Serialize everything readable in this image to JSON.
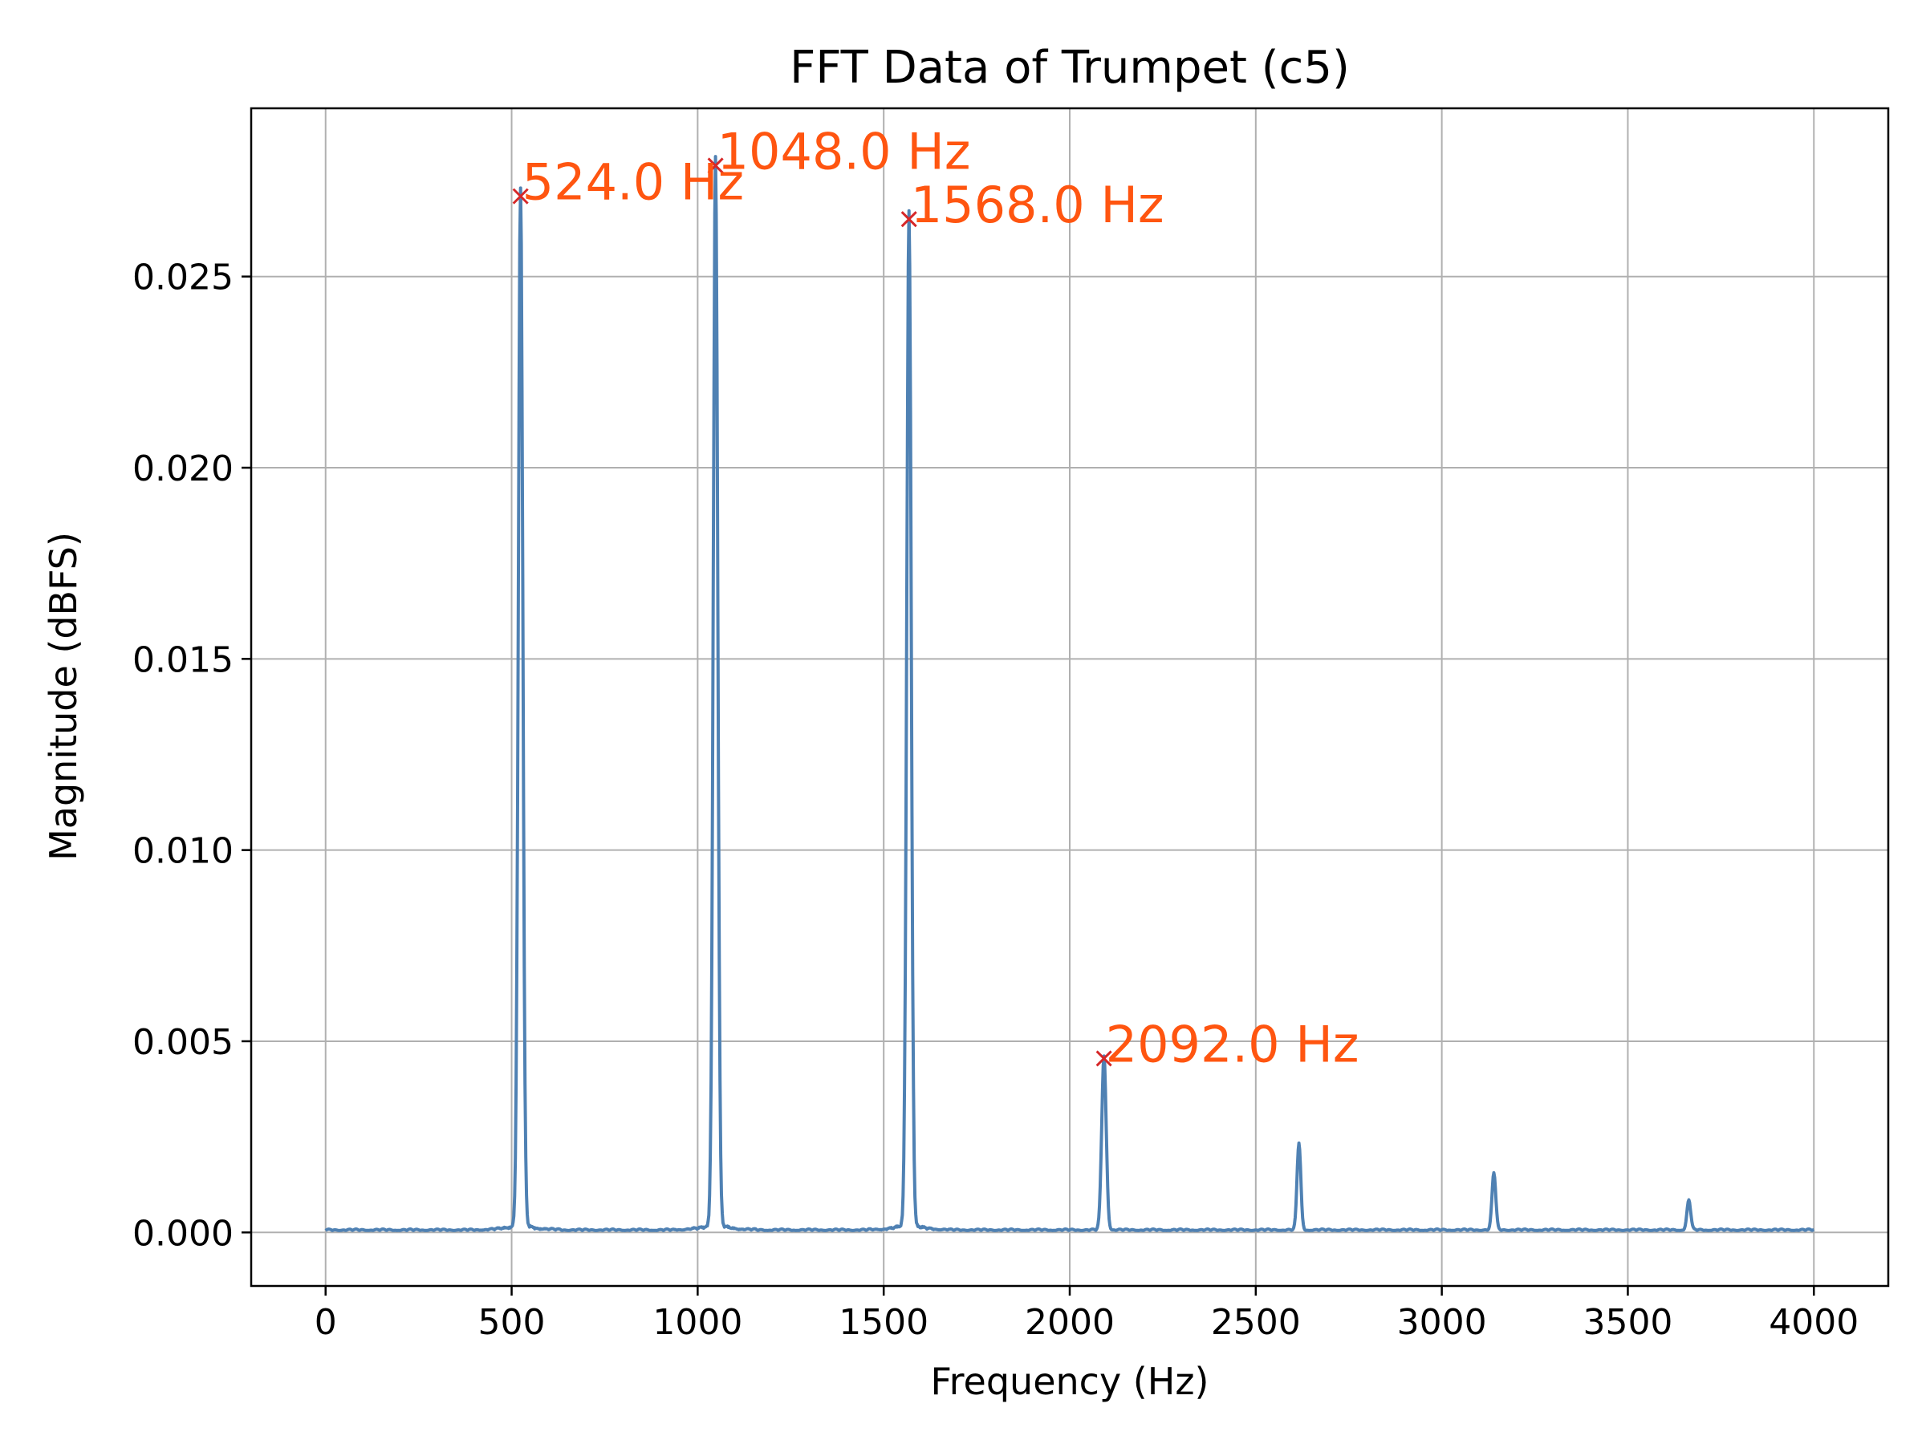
{
  "chart_data": {
    "type": "line",
    "title": "FFT Data of Trumpet (c5)",
    "xlabel": "Frequency (Hz)",
    "ylabel": "Magnitude (dBFS)",
    "xlim": [
      -200,
      4200
    ],
    "ylim": [
      -0.0014,
      0.0294
    ],
    "grid": true,
    "x_ticks": [
      0,
      500,
      1000,
      1500,
      2000,
      2500,
      3000,
      3500,
      4000
    ],
    "x_tick_labels": [
      "0",
      "500",
      "1000",
      "1500",
      "2000",
      "2500",
      "3000",
      "3500",
      "4000"
    ],
    "y_ticks": [
      0.0,
      0.005,
      0.01,
      0.015,
      0.02,
      0.025
    ],
    "y_tick_labels": [
      "0.000",
      "0.005",
      "0.010",
      "0.015",
      "0.020",
      "0.025"
    ],
    "line_color": "#4f81b3",
    "marker_color": "#d62728",
    "annotation_color": "#ff5510",
    "baseline": 5e-05,
    "series": [
      {
        "peaks": [
          {
            "x": 524,
            "y": 0.0271,
            "width": 6
          },
          {
            "x": 1048,
            "y": 0.0279,
            "width": 6
          },
          {
            "x": 1568,
            "y": 0.0265,
            "width": 6
          },
          {
            "x": 2092,
            "y": 0.00455,
            "width": 6
          },
          {
            "x": 2616,
            "y": 0.00228,
            "width": 5
          },
          {
            "x": 3140,
            "y": 0.0015,
            "width": 5
          },
          {
            "x": 3664,
            "y": 0.00078,
            "width": 5
          }
        ]
      }
    ],
    "annotations": [
      {
        "x": 524,
        "y": 0.0271,
        "text": "524.0 Hz"
      },
      {
        "x": 1048,
        "y": 0.0279,
        "text": "1048.0 Hz"
      },
      {
        "x": 1568,
        "y": 0.0265,
        "text": "1568.0 Hz"
      },
      {
        "x": 2092,
        "y": 0.00455,
        "text": "2092.0 Hz"
      }
    ]
  }
}
